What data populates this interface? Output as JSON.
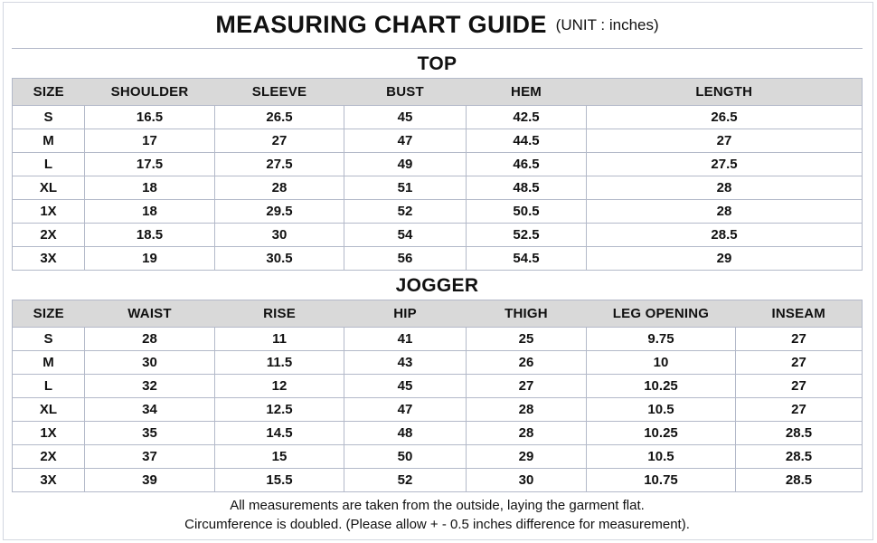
{
  "title": {
    "main": "MEASURING CHART GUIDE",
    "unit": "(UNIT : inches)"
  },
  "tables": [
    {
      "section": "TOP",
      "columns": [
        "SIZE",
        "SHOULDER",
        "SLEEVE",
        "BUST",
        "HEM",
        "LENGTH"
      ],
      "rows": [
        [
          "S",
          "16.5",
          "26.5",
          "45",
          "42.5",
          "26.5"
        ],
        [
          "M",
          "17",
          "27",
          "47",
          "44.5",
          "27"
        ],
        [
          "L",
          "17.5",
          "27.5",
          "49",
          "46.5",
          "27.5"
        ],
        [
          "XL",
          "18",
          "28",
          "51",
          "48.5",
          "28"
        ],
        [
          "1X",
          "18",
          "29.5",
          "52",
          "50.5",
          "28"
        ],
        [
          "2X",
          "18.5",
          "30",
          "54",
          "52.5",
          "28.5"
        ],
        [
          "3X",
          "19",
          "30.5",
          "56",
          "54.5",
          "29"
        ]
      ]
    },
    {
      "section": "JOGGER",
      "columns": [
        "SIZE",
        "WAIST",
        "RISE",
        "HIP",
        "THIGH",
        "LEG OPENING",
        "INSEAM"
      ],
      "rows": [
        [
          "S",
          "28",
          "11",
          "41",
          "25",
          "9.75",
          "27"
        ],
        [
          "M",
          "30",
          "11.5",
          "43",
          "26",
          "10",
          "27"
        ],
        [
          "L",
          "32",
          "12",
          "45",
          "27",
          "10.25",
          "27"
        ],
        [
          "XL",
          "34",
          "12.5",
          "47",
          "28",
          "10.5",
          "27"
        ],
        [
          "1X",
          "35",
          "14.5",
          "48",
          "28",
          "10.25",
          "28.5"
        ],
        [
          "2X",
          "37",
          "15",
          "50",
          "29",
          "10.5",
          "28.5"
        ],
        [
          "3X",
          "39",
          "15.5",
          "52",
          "30",
          "10.75",
          "28.5"
        ]
      ]
    }
  ],
  "footer": {
    "line1": "All measurements are taken from the outside, laying the garment flat.",
    "line2": "Circumference is doubled. (Please allow + - 0.5 inches difference for measurement)."
  },
  "colors": {
    "header_bg": "#d9d9d9",
    "border": "#b3b9c9",
    "text": "#111111"
  }
}
